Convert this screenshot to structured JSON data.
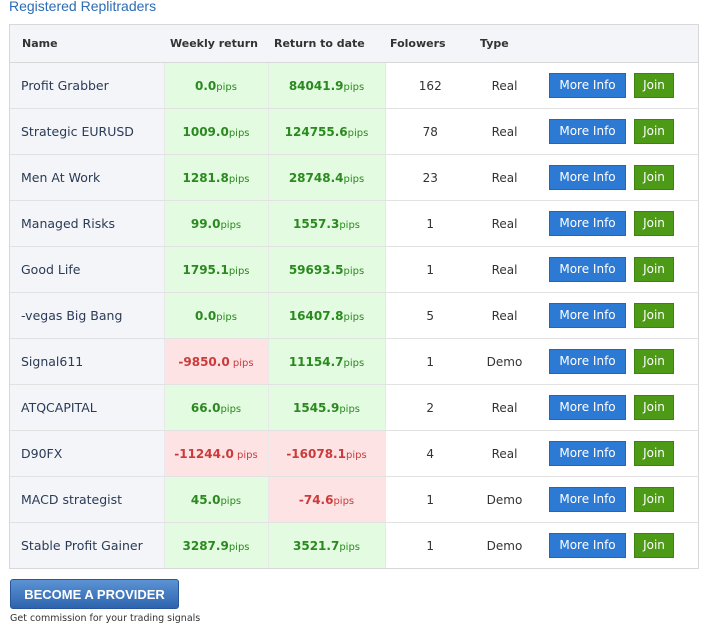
{
  "page": {
    "title": "Registered Replitraders"
  },
  "table": {
    "headers": {
      "name": "Name",
      "weekly": "Weekly return",
      "return_to_date": "Return to date",
      "followers": "Folowers",
      "type": "Type"
    },
    "rows": [
      {
        "name": "Profit Grabber",
        "weekly": "0.0",
        "weekly_unit": "pips",
        "weekly_sign": "pos",
        "rtd": "84041.9",
        "rtd_unit": "pips",
        "rtd_sign": "pos",
        "followers": "162",
        "type": "Real",
        "more": "More Info",
        "join": "Join"
      },
      {
        "name": "Strategic EURUSD",
        "weekly": "1009.0",
        "weekly_unit": "pips",
        "weekly_sign": "pos",
        "rtd": "124755.6",
        "rtd_unit": "pips",
        "rtd_sign": "pos",
        "followers": "78",
        "type": "Real",
        "more": "More Info",
        "join": "Join"
      },
      {
        "name": "Men At Work",
        "weekly": "1281.8",
        "weekly_unit": "pips",
        "weekly_sign": "pos",
        "rtd": "28748.4",
        "rtd_unit": "pips",
        "rtd_sign": "pos",
        "followers": "23",
        "type": "Real",
        "more": "More Info",
        "join": "Join"
      },
      {
        "name": "Managed Risks",
        "weekly": "99.0",
        "weekly_unit": "pips",
        "weekly_sign": "pos",
        "rtd": "1557.3",
        "rtd_unit": "pips",
        "rtd_sign": "pos",
        "followers": "1",
        "type": "Real",
        "more": "More Info",
        "join": "Join"
      },
      {
        "name": "Good Life",
        "weekly": "1795.1",
        "weekly_unit": "pips",
        "weekly_sign": "pos",
        "rtd": "59693.5",
        "rtd_unit": "pips",
        "rtd_sign": "pos",
        "followers": "1",
        "type": "Real",
        "more": "More Info",
        "join": "Join"
      },
      {
        "name": "-vegas Big Bang",
        "weekly": "0.0",
        "weekly_unit": "pips",
        "weekly_sign": "pos",
        "rtd": "16407.8",
        "rtd_unit": "pips",
        "rtd_sign": "pos",
        "followers": "5",
        "type": "Real",
        "more": "More Info",
        "join": "Join"
      },
      {
        "name": "Signal611",
        "weekly": "-9850.0",
        "weekly_unit": " pips",
        "weekly_sign": "neg",
        "rtd": "11154.7",
        "rtd_unit": "pips",
        "rtd_sign": "pos",
        "followers": "1",
        "type": "Demo",
        "more": "More Info",
        "join": "Join"
      },
      {
        "name": "ATQCAPITAL",
        "weekly": "66.0",
        "weekly_unit": "pips",
        "weekly_sign": "pos",
        "rtd": "1545.9",
        "rtd_unit": "pips",
        "rtd_sign": "pos",
        "followers": "2",
        "type": "Real",
        "more": "More Info",
        "join": "Join"
      },
      {
        "name": "D90FX",
        "weekly": "-11244.0",
        "weekly_unit": " pips",
        "weekly_sign": "neg",
        "rtd": "-16078.1",
        "rtd_unit": "pips",
        "rtd_sign": "neg",
        "followers": "4",
        "type": "Real",
        "more": "More Info",
        "join": "Join"
      },
      {
        "name": "MACD strategist",
        "weekly": "45.0",
        "weekly_unit": "pips",
        "weekly_sign": "pos",
        "rtd": "-74.6",
        "rtd_unit": "pips",
        "rtd_sign": "neg",
        "followers": "1",
        "type": "Demo",
        "more": "More Info",
        "join": "Join"
      },
      {
        "name": "Stable Profit Gainer",
        "weekly": "3287.9",
        "weekly_unit": "pips",
        "weekly_sign": "pos",
        "rtd": "3521.7",
        "rtd_unit": "pips",
        "rtd_sign": "pos",
        "followers": "1",
        "type": "Demo",
        "more": "More Info",
        "join": "Join"
      }
    ]
  },
  "provider": {
    "button_label": "BECOME A PROVIDER",
    "note": "Get commission for your trading signals"
  },
  "colors": {
    "positive_bg": "#e3fbe0",
    "positive_text": "#2a8a1f",
    "negative_bg": "#fde3e3",
    "negative_text": "#cc3b3b",
    "info_button": "#2d7ad4",
    "join_button": "#4c9a16",
    "title": "#2b6cb6"
  }
}
